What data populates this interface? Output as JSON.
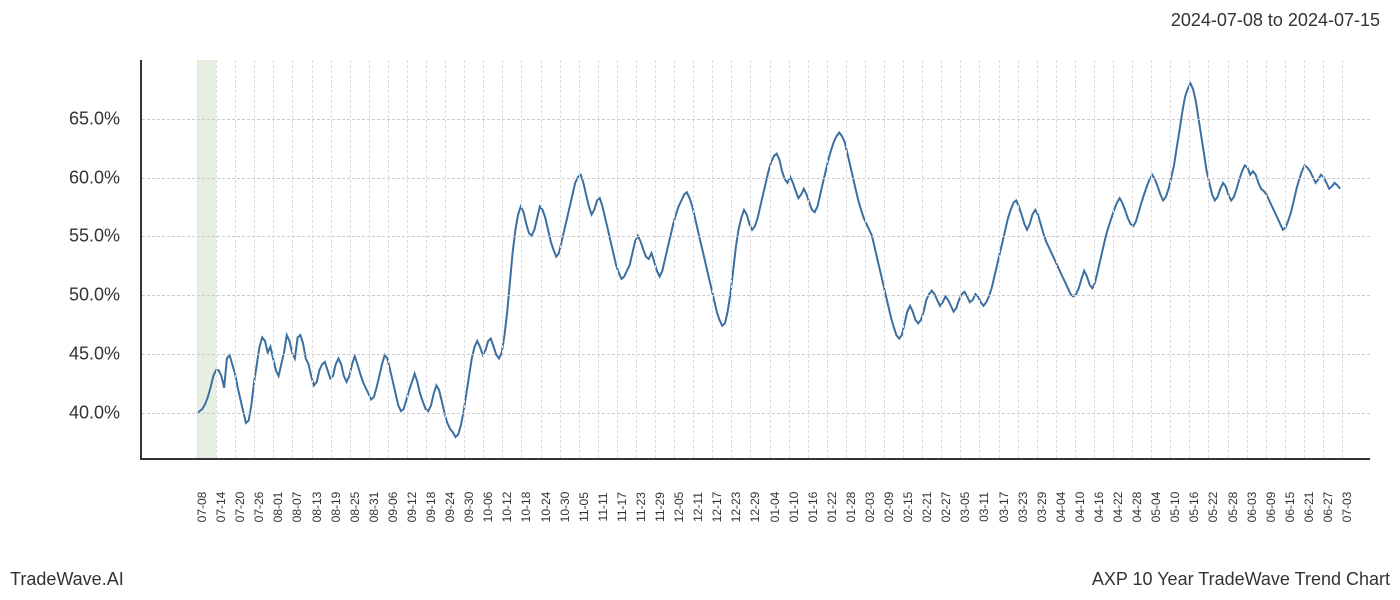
{
  "date_range": "2024-07-08 to 2024-07-15",
  "brand": "TradeWave.AI",
  "title": "AXP 10 Year TradeWave Trend Chart",
  "chart": {
    "type": "line",
    "line_color": "#3b6fa0",
    "line_width": 2,
    "background_color": "#ffffff",
    "grid_color": "#cccccc",
    "vgrid_color": "#dddddd",
    "axis_color": "#333333",
    "highlight_band": {
      "color": "#dde8d5",
      "start_index": 0,
      "end_index": 1
    },
    "y_axis": {
      "min": 36,
      "max": 70,
      "ticks": [
        40,
        45,
        50,
        55,
        60,
        65
      ],
      "tick_labels": [
        "40.0%",
        "45.0%",
        "50.0%",
        "55.0%",
        "60.0%",
        "65.0%"
      ],
      "label_fontsize": 18
    },
    "x_axis": {
      "labels": [
        "07-08",
        "07-14",
        "07-20",
        "07-26",
        "08-01",
        "08-07",
        "08-13",
        "08-19",
        "08-25",
        "08-31",
        "09-06",
        "09-12",
        "09-18",
        "09-24",
        "09-30",
        "10-06",
        "10-12",
        "10-18",
        "10-24",
        "10-30",
        "11-05",
        "11-11",
        "11-17",
        "11-23",
        "11-29",
        "12-05",
        "12-11",
        "12-17",
        "12-23",
        "12-29",
        "01-04",
        "01-10",
        "01-16",
        "01-22",
        "01-28",
        "02-03",
        "02-09",
        "02-15",
        "02-21",
        "02-27",
        "03-05",
        "03-11",
        "03-17",
        "03-23",
        "03-29",
        "04-04",
        "04-10",
        "04-16",
        "04-22",
        "04-28",
        "05-04",
        "05-10",
        "05-16",
        "05-22",
        "05-28",
        "06-03",
        "06-09",
        "06-15",
        "06-21",
        "06-27",
        "07-03"
      ],
      "label_fontsize": 12
    },
    "series": {
      "values": [
        39.8,
        40.0,
        40.2,
        40.6,
        41.2,
        42.0,
        43.0,
        43.5,
        43.5,
        43.0,
        42.0,
        44.5,
        44.8,
        44.0,
        43.2,
        42.0,
        41.0,
        40.0,
        39.0,
        39.2,
        40.5,
        42.5,
        44.0,
        45.5,
        46.3,
        46.0,
        45.0,
        45.5,
        44.5,
        43.5,
        43.0,
        44.0,
        45.0,
        46.5,
        46.0,
        45.0,
        44.5,
        46.3,
        46.5,
        45.8,
        44.5,
        44.0,
        43.0,
        42.2,
        42.5,
        43.5,
        44.0,
        44.2,
        43.5,
        42.8,
        43.0,
        44.0,
        44.5,
        44.0,
        43.0,
        42.5,
        43.0,
        44.0,
        44.7,
        44.0,
        43.2,
        42.5,
        42.0,
        41.5,
        41.0,
        41.2,
        42.0,
        43.0,
        44.0,
        44.8,
        44.5,
        43.5,
        42.5,
        41.5,
        40.5,
        40.0,
        40.2,
        41.0,
        41.8,
        42.5,
        43.2,
        42.5,
        41.5,
        40.8,
        40.2,
        40.0,
        40.5,
        41.5,
        42.2,
        41.8,
        40.8,
        39.8,
        39.0,
        38.5,
        38.2,
        37.8,
        38.0,
        38.8,
        40.0,
        41.5,
        43.0,
        44.5,
        45.5,
        46.0,
        45.5,
        44.8,
        45.2,
        46.0,
        46.2,
        45.5,
        44.8,
        44.5,
        45.0,
        46.5,
        48.5,
        51.0,
        53.5,
        55.5,
        56.8,
        57.5,
        57.0,
        56.0,
        55.2,
        55.0,
        55.5,
        56.5,
        57.5,
        57.2,
        56.5,
        55.5,
        54.5,
        53.8,
        53.2,
        53.5,
        54.5,
        55.5,
        56.5,
        57.5,
        58.5,
        59.5,
        60.0,
        60.2,
        59.5,
        58.5,
        57.5,
        56.8,
        57.2,
        58.0,
        58.2,
        57.5,
        56.5,
        55.5,
        54.5,
        53.5,
        52.5,
        51.8,
        51.3,
        51.5,
        52.0,
        52.5,
        53.5,
        54.5,
        55.0,
        54.5,
        53.8,
        53.2,
        53.0,
        53.5,
        52.8,
        52.0,
        51.5,
        52.0,
        53.0,
        54.0,
        55.0,
        56.0,
        56.8,
        57.5,
        58.0,
        58.5,
        58.7,
        58.2,
        57.5,
        56.5,
        55.5,
        54.5,
        53.5,
        52.5,
        51.5,
        50.5,
        49.5,
        48.5,
        47.8,
        47.3,
        47.5,
        48.5,
        50.0,
        52.0,
        54.0,
        55.5,
        56.5,
        57.2,
        56.8,
        56.0,
        55.5,
        55.8,
        56.5,
        57.5,
        58.5,
        59.5,
        60.5,
        61.3,
        61.8,
        62.0,
        61.5,
        60.5,
        59.8,
        59.5,
        60.0,
        59.5,
        58.8,
        58.2,
        58.5,
        59.0,
        58.5,
        57.8,
        57.2,
        57.0,
        57.5,
        58.5,
        59.5,
        60.5,
        61.5,
        62.3,
        63.0,
        63.5,
        63.8,
        63.5,
        63.0,
        62.0,
        61.0,
        60.0,
        59.0,
        58.0,
        57.2,
        56.5,
        56.0,
        55.5,
        55.0,
        54.0,
        53.0,
        52.0,
        51.0,
        50.0,
        49.0,
        48.0,
        47.2,
        46.5,
        46.2,
        46.5,
        47.5,
        48.5,
        49.0,
        48.5,
        47.8,
        47.5,
        47.8,
        48.5,
        49.5,
        50.0,
        50.3,
        50.0,
        49.5,
        49.0,
        49.3,
        49.8,
        49.5,
        49.0,
        48.5,
        48.8,
        49.5,
        50.0,
        50.2,
        49.8,
        49.3,
        49.5,
        50.0,
        49.8,
        49.3,
        49.0,
        49.3,
        49.8,
        50.5,
        51.5,
        52.5,
        53.5,
        54.5,
        55.5,
        56.5,
        57.2,
        57.8,
        58.0,
        57.5,
        56.8,
        56.0,
        55.5,
        56.0,
        56.8,
        57.2,
        56.8,
        56.0,
        55.2,
        54.5,
        54.0,
        53.5,
        53.0,
        52.5,
        52.0,
        51.5,
        51.0,
        50.5,
        50.0,
        49.8,
        50.0,
        50.5,
        51.3,
        52.0,
        51.5,
        50.8,
        50.5,
        51.0,
        52.0,
        53.0,
        54.0,
        55.0,
        55.8,
        56.5,
        57.2,
        57.8,
        58.2,
        57.8,
        57.2,
        56.5,
        56.0,
        55.8,
        56.2,
        57.0,
        57.8,
        58.5,
        59.2,
        59.8,
        60.2,
        59.8,
        59.2,
        58.5,
        58.0,
        58.3,
        59.0,
        60.0,
        61.0,
        62.5,
        64.0,
        65.5,
        66.8,
        67.5,
        68.0,
        67.5,
        66.5,
        65.0,
        63.5,
        62.0,
        60.5,
        59.5,
        58.5,
        58.0,
        58.3,
        59.0,
        59.5,
        59.2,
        58.5,
        58.0,
        58.3,
        59.0,
        59.8,
        60.5,
        61.0,
        60.8,
        60.2,
        60.5,
        60.2,
        59.5,
        59.0,
        58.8,
        58.5,
        58.0,
        57.5,
        57.0,
        56.5,
        56.0,
        55.5,
        55.7,
        56.3,
        57.0,
        58.0,
        59.0,
        59.8,
        60.5,
        61.0,
        60.8,
        60.5,
        60.0,
        59.5,
        59.8,
        60.2,
        60.0,
        59.5,
        59.0,
        59.2,
        59.5,
        59.3,
        59.0
      ]
    }
  }
}
